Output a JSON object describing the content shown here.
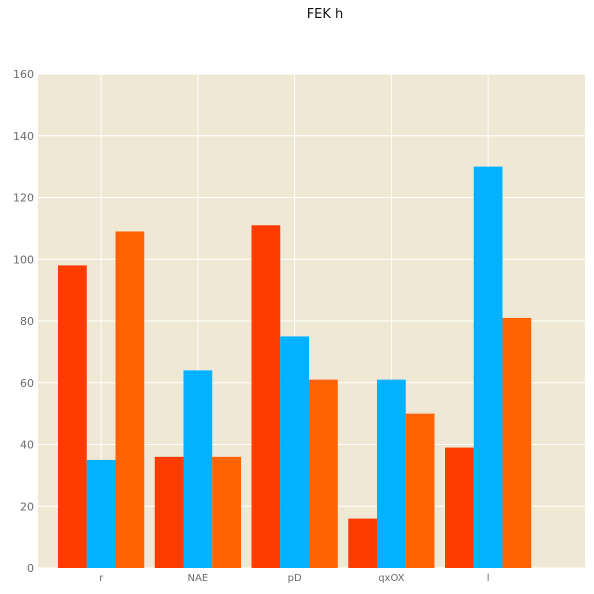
{
  "chart_data": {
    "type": "bar",
    "title": "FEK h",
    "xlabel": "",
    "ylabel": "",
    "categories": [
      "r",
      "NAE",
      "pD",
      "qxOX",
      "l"
    ],
    "series": [
      {
        "values": [
          98,
          36,
          111,
          16,
          39
        ]
      },
      {
        "values": [
          35,
          64,
          75,
          61,
          130
        ]
      },
      {
        "values": [
          109,
          36,
          61,
          50,
          81
        ]
      }
    ],
    "ylim": [
      0,
      160
    ],
    "yticks": [
      0,
      20,
      40,
      60,
      80,
      100,
      120,
      140,
      160
    ],
    "grid": true,
    "legend": "none",
    "colors": {
      "series": [
        "#ff3b00",
        "#00b2ff",
        "#ff6200"
      ],
      "plot_background": "#efe8d5",
      "grid": "#ffffff",
      "tick_text": "#6b6b6b"
    }
  }
}
